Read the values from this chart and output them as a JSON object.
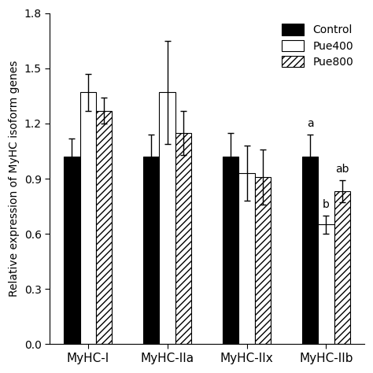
{
  "categories": [
    "MyHC-I",
    "MyHC-IIa",
    "MyHC-IIx",
    "MyHC-IIb"
  ],
  "bar_values": {
    "Control": [
      1.02,
      1.02,
      1.02,
      1.02
    ],
    "Pue400": [
      1.37,
      1.37,
      0.93,
      0.65
    ],
    "Pue800": [
      1.27,
      1.15,
      0.91,
      0.83
    ]
  },
  "bar_errors": {
    "Control": [
      0.1,
      0.12,
      0.13,
      0.12
    ],
    "Pue400": [
      0.1,
      0.28,
      0.15,
      0.05
    ],
    "Pue800": [
      0.07,
      0.12,
      0.15,
      0.06
    ]
  },
  "bar_colors": {
    "Control": "#000000",
    "Pue400": "#ffffff",
    "Pue800": "#ffffff"
  },
  "hatch_pattern": "////",
  "hatch_color": "#888888",
  "ylabel": "Relative expression of MyHC isoform genes",
  "ylim": [
    0.0,
    1.8
  ],
  "yticks": [
    0.0,
    0.3,
    0.6,
    0.9,
    1.2,
    1.5,
    1.8
  ],
  "legend_labels": [
    "Control",
    "Pue400",
    "Pue800"
  ],
  "legend_loc": "upper right",
  "bar_width": 0.2,
  "edgecolor": "#000000",
  "figsize": [
    4.74,
    4.74
  ],
  "dpi": 100,
  "annotations_control_a": [
    3
  ],
  "annotations_pue400_b": [
    3
  ],
  "annotations_pue800_ab": [
    3
  ]
}
